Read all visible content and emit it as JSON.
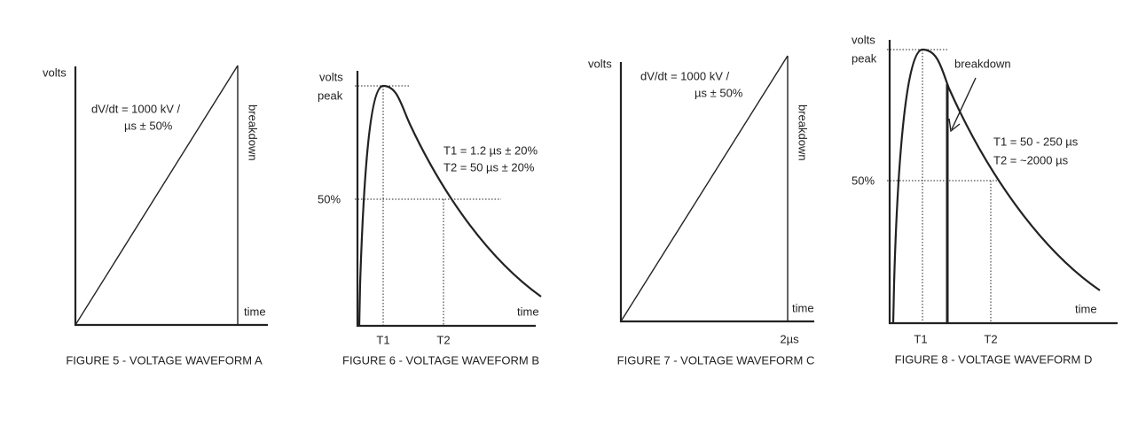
{
  "figures": [
    {
      "caption": "FIGURE 5 - VOLTAGE WAVEFORM A",
      "y_label": "volts",
      "x_label": "time",
      "rate_line1": "dV/dt = 1000 kV /",
      "rate_line2": "µs ± 50%",
      "breakdown": "breakdown"
    },
    {
      "caption": "FIGURE 6 - VOLTAGE WAVEFORM B",
      "y_label": "volts",
      "peak": "peak",
      "half": "50%",
      "t1_spec": "T1 = 1.2 µs ± 20%",
      "t2_spec": "T2 =  50 µs ± 20%",
      "x_label": "time",
      "t1": "T1",
      "t2": "T2"
    },
    {
      "caption": "FIGURE 7 - VOLTAGE WAVEFORM C",
      "y_label": "volts",
      "x_label": "time",
      "rate_line1": "dV/dt = 1000 kV /",
      "rate_line2": "µs ± 50%",
      "breakdown": "breakdown",
      "end_time": "2µs"
    },
    {
      "caption": "FIGURE 8 - VOLTAGE WAVEFORM D",
      "y_label": "volts",
      "peak": "peak",
      "breakdown": "breakdown",
      "t1_spec": "T1 = 50 - 250 µs",
      "t2_spec": "T2 = ~2000 µs",
      "half": "50%",
      "x_label": "time",
      "t1": "T1",
      "t2": "T2"
    }
  ]
}
